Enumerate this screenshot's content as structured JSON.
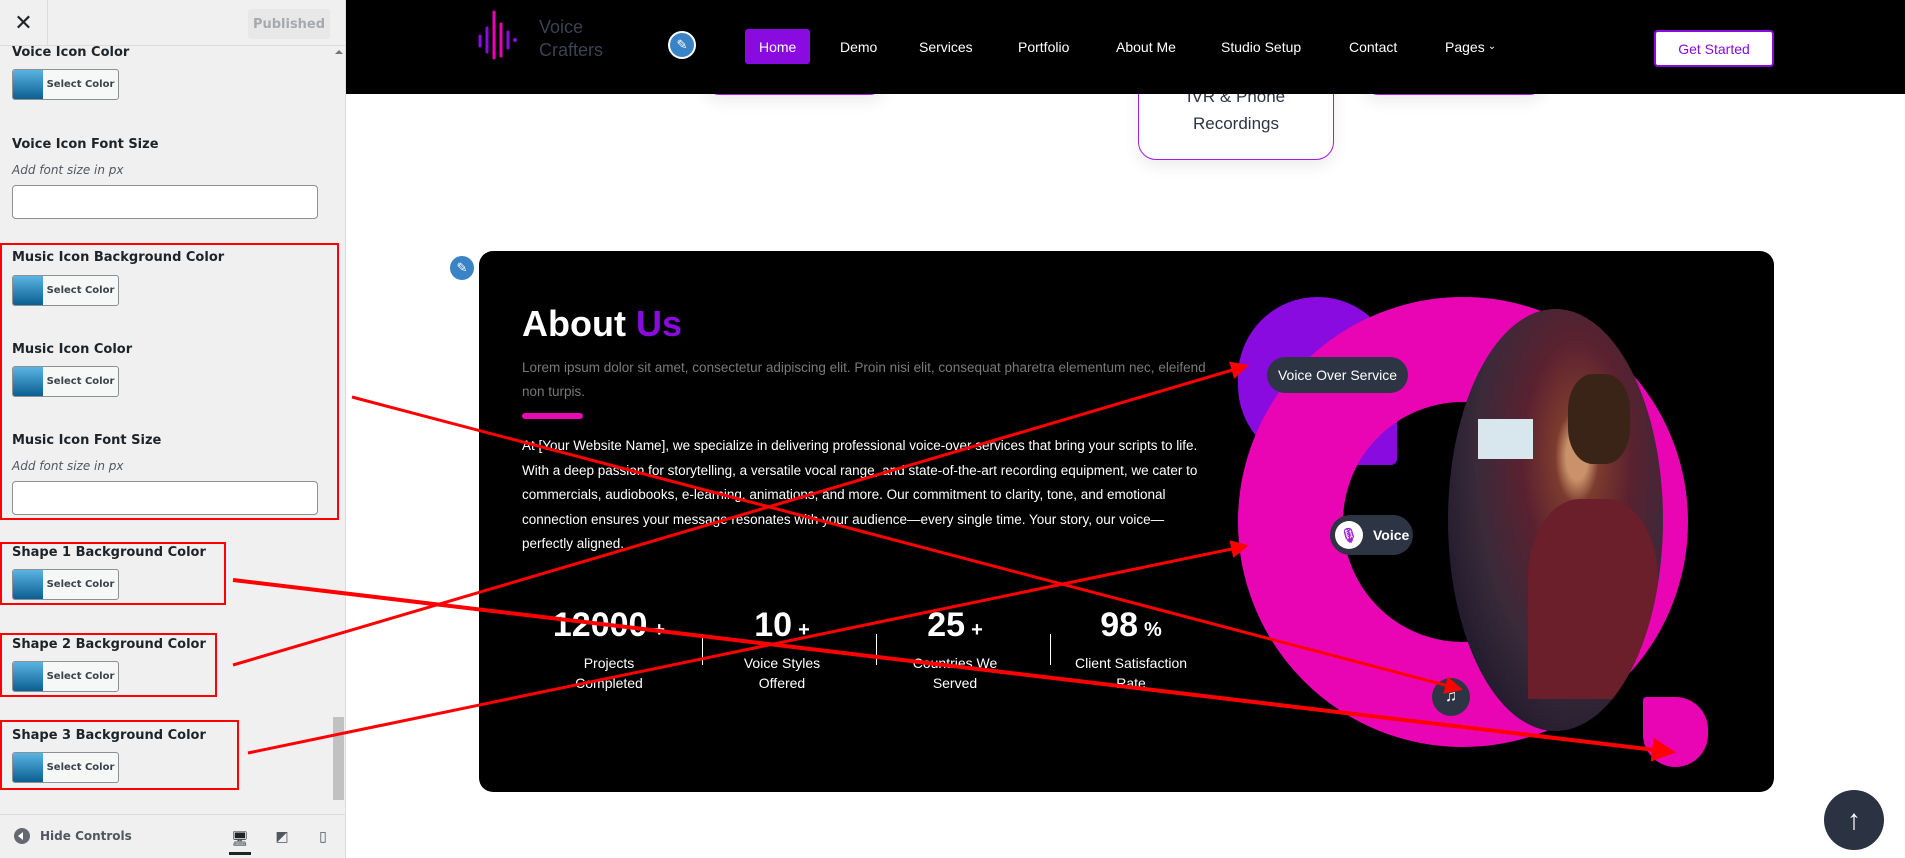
{
  "sidebar": {
    "close_icon": "close-icon",
    "published_label": "Published",
    "controls": [
      {
        "label": "Voice Icon Color",
        "button": "Select Color"
      },
      {
        "label": "Voice Icon Font Size",
        "hint": "Add font size in px",
        "value": ""
      },
      {
        "label": "Music Icon Background Color",
        "button": "Select Color"
      },
      {
        "label": "Music Icon Color",
        "button": "Select Color"
      },
      {
        "label": "Music Icon Font Size",
        "hint": "Add font size in px",
        "value": ""
      },
      {
        "label": "Shape 1 Background Color",
        "button": "Select Color"
      },
      {
        "label": "Shape 2 Background Color",
        "button": "Select Color"
      },
      {
        "label": "Shape 3 Background Color",
        "button": "Select Color"
      }
    ],
    "hide_controls": "Hide Controls",
    "devices": [
      "desktop-icon",
      "tablet-icon",
      "mobile-icon"
    ]
  },
  "header": {
    "logo_line1": "Voice",
    "logo_line2": "Crafters",
    "nav": [
      "Home",
      "Demo",
      "Services",
      "Portfolio",
      "About Me",
      "Studio Setup",
      "Contact",
      "Pages"
    ],
    "active": "Home",
    "cta": "Get Started"
  },
  "services_card": {
    "line1": "IVR & Phone",
    "line2": "Recordings"
  },
  "about": {
    "title_a": "About",
    "title_b": "Us",
    "subtitle": "Lorem ipsum dolor sit amet, consectetur adipiscing elit. Proin nisi elit, consequat pharetra elementum nec, eleifend non turpis.",
    "body": "At [Your Website Name], we specialize in delivering professional voice-over services that bring your scripts to life. With a deep passion for storytelling, a versatile vocal range, and state-of-the-art recording equipment, we cater to commercials, audiobooks, e-learning, animations, and more. Our commitment to clarity, tone, and emotional connection ensures your message resonates with your audience—every single time. Your story, our voice—perfectly aligned.",
    "stats": [
      {
        "value": "12000",
        "suffix": "+",
        "label": "Projects Completed"
      },
      {
        "value": "10",
        "suffix": "+",
        "label": "Voice Styles Offered"
      },
      {
        "value": "25",
        "suffix": "+",
        "label": "Countries We Served"
      },
      {
        "value": "98",
        "suffix": "%",
        "label": "Client Satisfaction Rate"
      }
    ],
    "badge_service": "Voice Over Service",
    "badge_voice": "Voice",
    "colors": {
      "purple": "#8a0be0",
      "pink": "#e905b4",
      "dark": "#2d3444"
    }
  }
}
